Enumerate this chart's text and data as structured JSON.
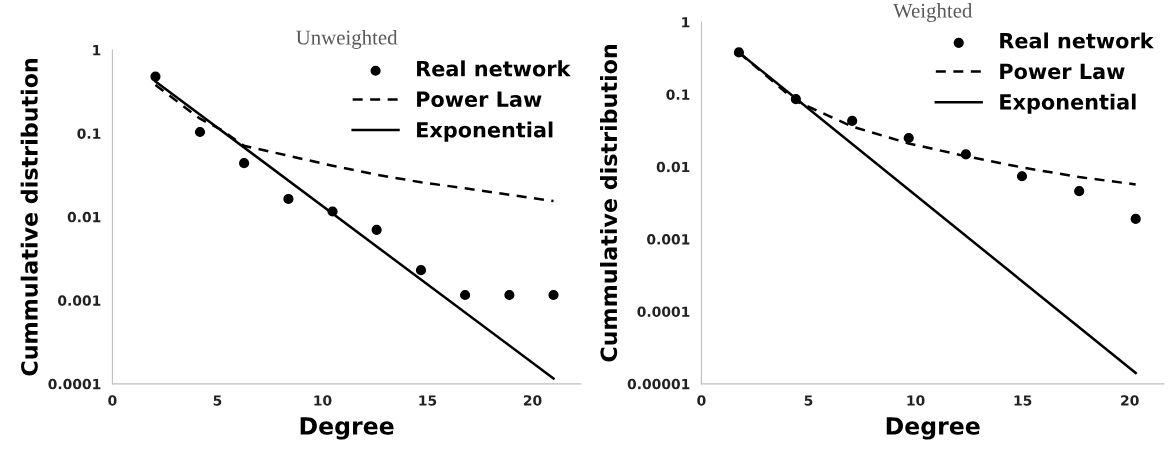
{
  "chart_data": [
    {
      "type": "scatter",
      "title": "Unweighted",
      "xlabel": "Degree",
      "ylabel": "Cummulative distribution",
      "log": "y",
      "legend": "top right",
      "grid": false,
      "xlim": [
        0,
        22.3
      ],
      "xticks": [
        0,
        5,
        10,
        15,
        20
      ],
      "ylim": [
        0.0001,
        1
      ],
      "yticks": [
        0.0001,
        0.001,
        0.01,
        0.1,
        1
      ],
      "series": [
        {
          "name": "Real network",
          "marker": "circle",
          "color": "#000000",
          "x": [
            2.05,
            4.17,
            6.27,
            8.38,
            10.48,
            12.58,
            14.69,
            16.79,
            18.9,
            21.0
          ],
          "values": [
            0.48,
            0.104,
            0.044,
            0.0164,
            0.0116,
            0.007,
            0.0023,
            0.00116,
            0.00116,
            0.00116
          ]
        },
        {
          "name": "Power Law",
          "type": "line",
          "line_style": "dashed",
          "color": "#000000",
          "x": [
            2.05,
            4.17,
            5.2,
            6.27,
            8.38,
            10.48,
            12.58,
            14.69,
            16.79,
            18.9,
            21.0
          ],
          "values": [
            0.38,
            0.15,
            0.11,
            0.071,
            0.054,
            0.041,
            0.032,
            0.026,
            0.022,
            0.0184,
            0.0155
          ]
        },
        {
          "name": "Exponential",
          "type": "line",
          "line_style": "solid",
          "color": "#000000",
          "x": [
            2.05,
            21.0
          ],
          "values": [
            0.42,
            0.000116
          ]
        }
      ]
    },
    {
      "type": "scatter",
      "title": "Weighted",
      "xlabel": "Degree",
      "ylabel": "Cummulative distribution",
      "log": "y",
      "legend": "top right",
      "grid": false,
      "xlim": [
        0,
        21.6
      ],
      "xticks": [
        0,
        5,
        10,
        15,
        20
      ],
      "ylim": [
        1e-05,
        1
      ],
      "yticks": [
        {
          "value": 1e-05,
          "label": "0.00001"
        },
        0.0001,
        0.001,
        0.01,
        0.1,
        1
      ],
      "series": [
        {
          "name": "Real network",
          "marker": "circle",
          "color": "#000000",
          "x": [
            1.75,
            4.41,
            7.04,
            9.68,
            12.35,
            14.97,
            17.64,
            20.28
          ],
          "values": [
            0.38,
            0.086,
            0.043,
            0.025,
            0.0148,
            0.0074,
            0.0046,
            0.0019
          ]
        },
        {
          "name": "Power Law",
          "type": "line",
          "line_style": "dashed",
          "color": "#000000",
          "x": [
            1.75,
            4.41,
            7.04,
            9.68,
            12.35,
            14.97,
            17.64,
            20.28
          ],
          "values": [
            0.38,
            0.081,
            0.036,
            0.021,
            0.014,
            0.0098,
            0.0072,
            0.0057
          ]
        },
        {
          "name": "Exponential",
          "type": "line",
          "line_style": "solid",
          "color": "#000000",
          "x": [
            1.75,
            20.28
          ],
          "values": [
            0.38,
            1.41e-05
          ]
        }
      ]
    }
  ]
}
